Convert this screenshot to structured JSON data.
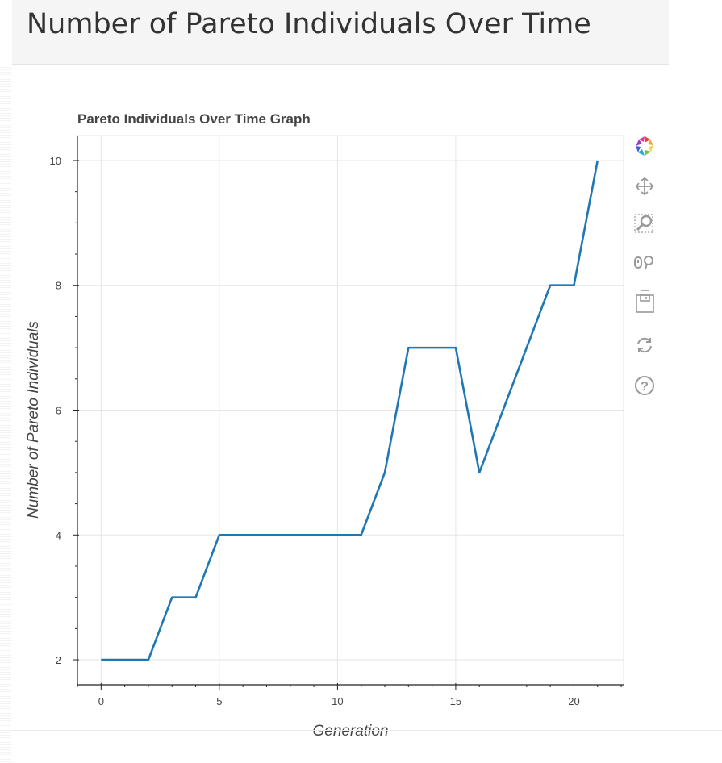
{
  "header": {
    "title": "Number of Pareto Individuals Over Time"
  },
  "chart_data": {
    "type": "line",
    "title": "Pareto Individuals Over Time Graph",
    "xlabel": "Generation",
    "ylabel": "Number of Pareto Individuals",
    "x": [
      0,
      1,
      2,
      3,
      4,
      5,
      6,
      7,
      8,
      9,
      10,
      11,
      12,
      13,
      14,
      15,
      16,
      17,
      18,
      19,
      20,
      21
    ],
    "series": [
      {
        "values": [
          2,
          2,
          2,
          3,
          3,
          4,
          4,
          4,
          4,
          4,
          4,
          4,
          5,
          7,
          7,
          7,
          5,
          6,
          7,
          8,
          8,
          10
        ]
      }
    ],
    "xlim": [
      -1,
      22.1
    ],
    "ylim": [
      1.6,
      10.4
    ],
    "xticks": [
      0,
      5,
      10,
      15,
      20
    ],
    "yticks": [
      2,
      4,
      6,
      8,
      10
    ],
    "grid": true,
    "line_color": "#1f77b4"
  },
  "toolbar": {
    "tools": [
      "bokeh-logo-icon",
      "pan-icon",
      "box-zoom-icon",
      "wheel-zoom-icon",
      "save-icon",
      "reset-icon",
      "help-icon"
    ]
  }
}
